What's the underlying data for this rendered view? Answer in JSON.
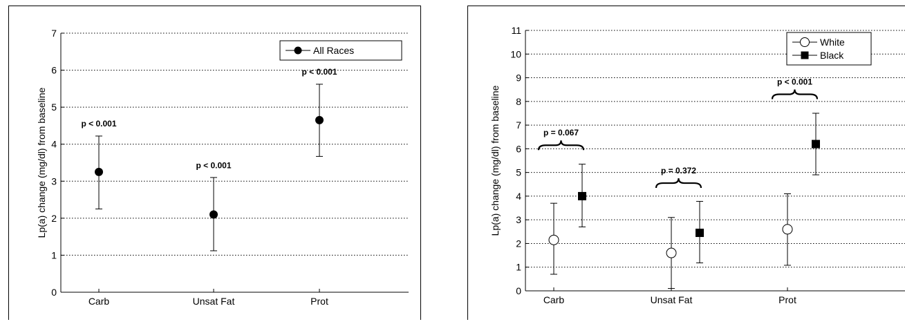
{
  "chart_data": [
    {
      "type": "scatter",
      "title": "",
      "xlabel": "",
      "ylabel": "Lp(a) change (mg/dl) from baseline",
      "categories": [
        "Carb",
        "Unsat Fat",
        "Prot"
      ],
      "ylim": [
        0,
        7
      ],
      "yticks": [
        0,
        1,
        2,
        3,
        4,
        5,
        6,
        7
      ],
      "grid": "horizontal dotted",
      "legend_position": "top-right",
      "series": [
        {
          "name": "All Races",
          "marker": "filled-circle",
          "values": [
            3.25,
            2.1,
            4.65
          ],
          "error_low": [
            2.25,
            1.12,
            3.67
          ],
          "error_high": [
            4.22,
            3.1,
            5.62
          ]
        }
      ],
      "annotations": [
        {
          "text": "p < 0.001",
          "category": 0
        },
        {
          "text": "p < 0.001",
          "category": 1
        },
        {
          "text": "p < 0.001",
          "category": 2
        }
      ]
    },
    {
      "type": "scatter",
      "title": "",
      "xlabel": "",
      "ylabel": "Lp(a) change (mg/dl) from baseline",
      "categories": [
        "Carb",
        "Unsat Fat",
        "Prot"
      ],
      "ylim": [
        0,
        11
      ],
      "yticks": [
        0,
        1,
        2,
        3,
        4,
        5,
        6,
        7,
        8,
        9,
        10,
        11
      ],
      "grid": "horizontal dotted",
      "legend_position": "top-right",
      "series": [
        {
          "name": "White",
          "marker": "open-circle",
          "values": [
            2.15,
            1.6,
            2.6
          ],
          "error_low": [
            0.7,
            0.1,
            1.08
          ],
          "error_high": [
            3.7,
            3.1,
            4.1
          ]
        },
        {
          "name": "Black",
          "marker": "filled-square",
          "values": [
            4.0,
            2.45,
            6.2
          ],
          "error_low": [
            2.7,
            1.18,
            4.9
          ],
          "error_high": [
            5.35,
            3.78,
            7.5
          ]
        }
      ],
      "annotations": [
        {
          "text": "p = 0.067",
          "category": 0
        },
        {
          "text": "p = 0.372",
          "category": 1
        },
        {
          "text": "p < 0.001",
          "category": 2
        }
      ]
    }
  ]
}
